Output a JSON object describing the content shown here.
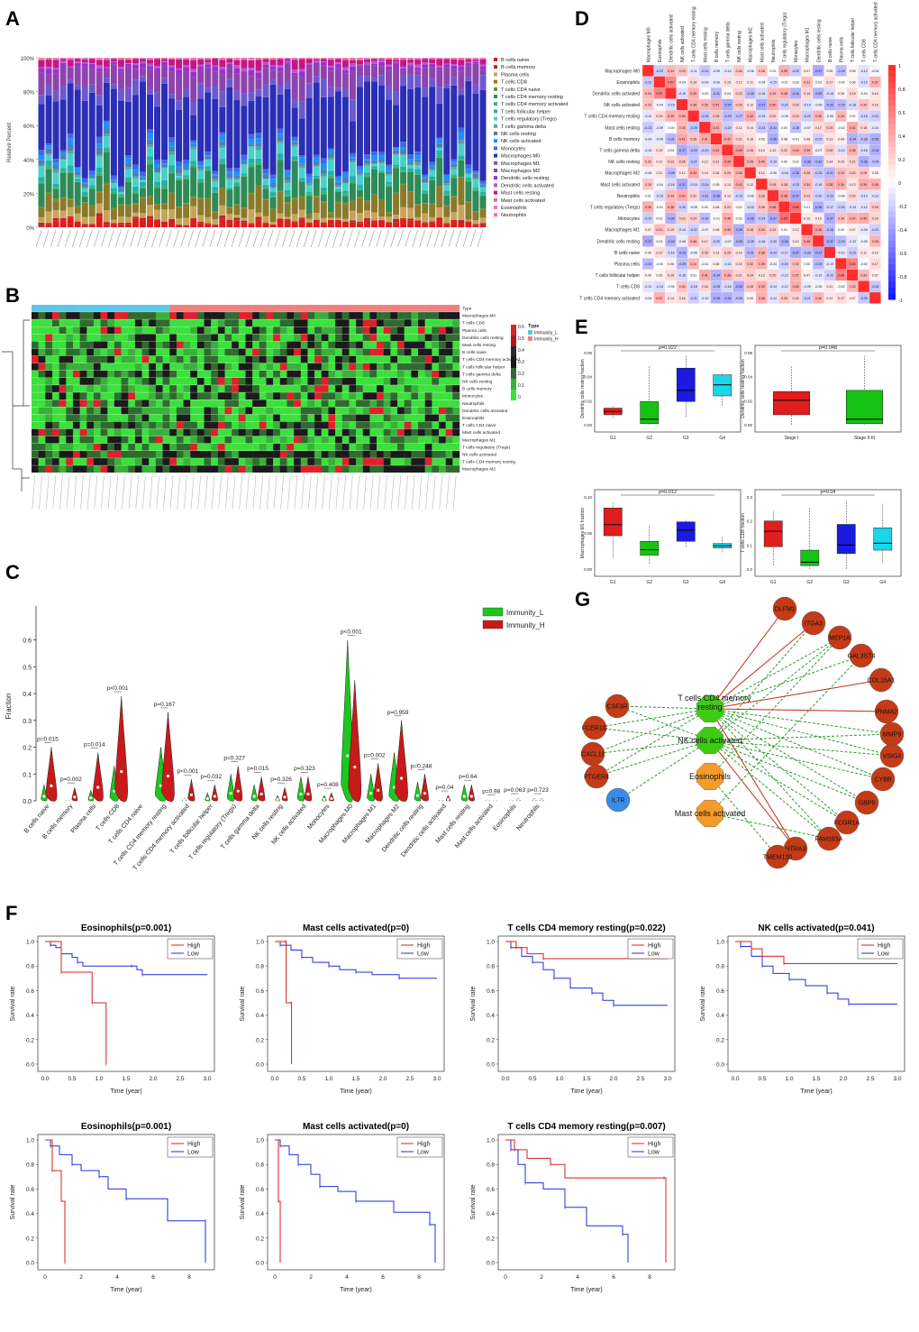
{
  "labels": {
    "A": "A",
    "B": "B",
    "C": "C",
    "D": "D",
    "E": "E",
    "F": "F",
    "G": "G"
  },
  "colors": {
    "low": "#1f2fd6",
    "high": "#dd1f1f",
    "immunity_l": "#1ec71e",
    "immunity_h": "#c91a1a",
    "net_red": "#c43b17",
    "net_green": "#3ecc12",
    "net_orange": "#f59b2a",
    "net_blue": "#3a8be8"
  },
  "panelA": {
    "yticks": [
      "0%",
      "20%",
      "40%",
      "60%",
      "80%",
      "100%"
    ],
    "ylabel": "Relative Percent",
    "legend": [
      "B cells naive",
      "B cells memory",
      "Plasma cells",
      "T cells CD8",
      "T cells CD4 naive",
      "T cells CD4 memory resting",
      "T cells CD4 memory activated",
      "T cells follicular helper",
      "T cells regulatory (Tregs)",
      "T cells gamma delta",
      "NK cells resting",
      "NK cells activated",
      "Monocytes",
      "Macrophages M0",
      "Macrophages M1",
      "Macrophages M2",
      "Dendritic cells resting",
      "Dendritic cells activated",
      "Mast cells resting",
      "Mast cells activated",
      "Eosinophils",
      "Neutrophils"
    ],
    "legend_colors": [
      "#e41a1c",
      "#b2292e",
      "#c8a45a",
      "#8a7a2a",
      "#6b8e23",
      "#2e8b57",
      "#3cb371",
      "#20b2aa",
      "#48d1cc",
      "#5f9ea0",
      "#4682b4",
      "#1e90ff",
      "#4169e1",
      "#2a2fb5",
      "#6a5acd",
      "#8e44ad",
      "#9932cc",
      "#ba55d3",
      "#c71585",
      "#db7093",
      "#e377c2",
      "#ff69b4"
    ]
  },
  "panelB": {
    "rows": [
      "Type",
      "Macrophages M0",
      "T cells CD8",
      "Plasma cells",
      "Dendritic cells resting",
      "Mast cells resting",
      "B cells naive",
      "T cells CD4 memory activated",
      "T cells follicular helper",
      "T cells gamma delta",
      "NK cells resting",
      "B cells memory",
      "Monocytes",
      "Neutrophils",
      "Dendritic cells activated",
      "Eosinophils",
      "T cells CD4 naive",
      "Mast cells activated",
      "Macrophages M1",
      "T cells regulatory (Tregs)",
      "NK cells activated",
      "T cells CD4 memory resting",
      "Macrophages M2"
    ],
    "legend_title": "Type",
    "legend_items": [
      "Immunity_L",
      "Immunity_H"
    ],
    "scale": [
      "0.6",
      "0.5",
      "0.4",
      "0.3",
      "0.2",
      "0.1",
      "0"
    ]
  },
  "panelC": {
    "ylabel": "Fraction",
    "yticks": [
      "0.0",
      "0.1",
      "0.2",
      "0.3",
      "0.4",
      "0.5",
      "0.6"
    ],
    "legend": [
      "Immunity_L",
      "Immunity_H"
    ],
    "cells": [
      "B cells naive",
      "B cells memory",
      "Plasma cells",
      "T cells CD8",
      "T cells CD4 naive",
      "T cells CD4 memory resting",
      "T cells CD4 memory activated",
      "T cells follicular helper",
      "T cells regulatory (Tregs)",
      "T cells gamma delta",
      "NK cells resting",
      "NK cells activated",
      "Monocytes",
      "Macrophages M0",
      "Macrophages M1",
      "Macrophages M2",
      "Dendritic cells resting",
      "Dendritic cells activated",
      "Mast cells resting",
      "Mast cells activated",
      "Eosinophils",
      "Neutrophils"
    ],
    "pvals": [
      "p=0.015",
      "p=0.002",
      "p=0.014",
      "p<0.001",
      "",
      "p=0.167",
      "p<0.001",
      "p=0.032",
      "p=0.327",
      "p=0.015",
      "p=0.326",
      "p=0.323",
      "p=0.408",
      "p<0.001",
      "p=0.002",
      "p=0.959",
      "p=0.248",
      "p=0.04",
      "p=0.64",
      "p=0.98",
      "p=0.063",
      "p=0.723"
    ],
    "maxL": [
      0.06,
      0.005,
      0.04,
      0.13,
      0,
      0.2,
      0.01,
      0.03,
      0.1,
      0.06,
      0.02,
      0.09,
      0.02,
      0.6,
      0.1,
      0.18,
      0.07,
      0.005,
      0.06,
      0.005,
      0.005,
      0.01
    ],
    "maxH": [
      0.2,
      0.05,
      0.18,
      0.39,
      0,
      0.33,
      0.08,
      0.06,
      0.13,
      0.09,
      0.05,
      0.09,
      0.03,
      0.45,
      0.14,
      0.3,
      0.1,
      0.02,
      0.06,
      0.005,
      0.01,
      0.01
    ]
  },
  "panelD": {
    "cells": [
      "Macrophages M0",
      "Eosinophils",
      "Dendritic cells activated",
      "NK cells activated",
      "T cells CD4 memory resting",
      "Mast cells resting",
      "B cells memory",
      "T cells gamma delta",
      "NK cells resting",
      "Macrophages M2",
      "Mast cells activated",
      "Neutrophils",
      "T cells regulatory (Tregs)",
      "Monocytes",
      "Macrophages M1",
      "Dendritic cells resting",
      "B cells naive",
      "Plasma cells",
      "T cells follicular helper",
      "T cells CD8",
      "T cells CD4 memory activated"
    ],
    "scale": [
      "1",
      "0.8",
      "0.6",
      "0.4",
      "0.2",
      "0",
      "-0.2",
      "-0.4",
      "-0.6",
      "-0.8",
      "-1"
    ]
  },
  "panelE": [
    {
      "ylabel": "Dendritic cells resting fraction",
      "p": "p=0.022",
      "groups": [
        "G1",
        "G2",
        "G3",
        "G4"
      ],
      "yticks": [
        "0.00",
        "0.02",
        "0.04",
        "0.06"
      ]
    },
    {
      "ylabel": "Dendritic cells resting fraction",
      "p": "p=0.048",
      "groups": [
        "Stage I",
        "Stage II-III"
      ],
      "yticks": [
        "0.00",
        "0.02",
        "0.04",
        "0.06"
      ]
    },
    {
      "ylabel": "Macrophages M1 fraction",
      "p": "p=0.012",
      "groups": [
        "G1",
        "G2",
        "G3",
        "G4"
      ],
      "yticks": [
        "0.00",
        "0.05",
        "0.10"
      ]
    },
    {
      "ylabel": "T cells CD8 fraction",
      "p": "p=0.04",
      "groups": [
        "G1",
        "G2",
        "G3",
        "G4"
      ],
      "yticks": [
        "0.0",
        "0.1",
        "0.2",
        "0.3"
      ]
    }
  ],
  "panelG": {
    "hubs": [
      "T cells CD4 memory resting",
      "NK cells activated",
      "Eosinophils",
      "Mast cells activated"
    ],
    "genes": [
      "OLFM1",
      "ITGA3",
      "MEP1A",
      "GAL3ST4",
      "COL16A1",
      "PNMA2",
      "MMP9",
      "VSIG4",
      "CYBB",
      "GBP5",
      "FCGR1A",
      "FAM183A",
      "HTRA3",
      "TMEM130",
      "CSF3R",
      "FCER1G",
      "CXCL11",
      "PTGER4",
      "IL7R"
    ]
  },
  "panelF": {
    "xlabel": "Time (year)",
    "ylabel": "Survival rate",
    "legend": [
      "High",
      "Low"
    ],
    "yticks": [
      "0.0",
      "0.2",
      "0.4",
      "0.6",
      "0.8",
      "1.0"
    ],
    "xticks_top": [
      "0.0",
      "0.5",
      "1.0",
      "1.5",
      "2.0",
      "2.5",
      "3.0"
    ],
    "xticks_bottom": [
      "0",
      "2",
      "4",
      "6",
      "8"
    ],
    "titles": [
      "Eosinophils(p=0.001)",
      "Mast cells activated(p=0)",
      "T cells CD4 memory resting(p=0.022)",
      "NK cells activated(p=0.041)",
      "Eosinophils(p=0.001)",
      "Mast cells activated(p=0)",
      "T cells CD4 memory resting(p=0.007)"
    ]
  }
}
